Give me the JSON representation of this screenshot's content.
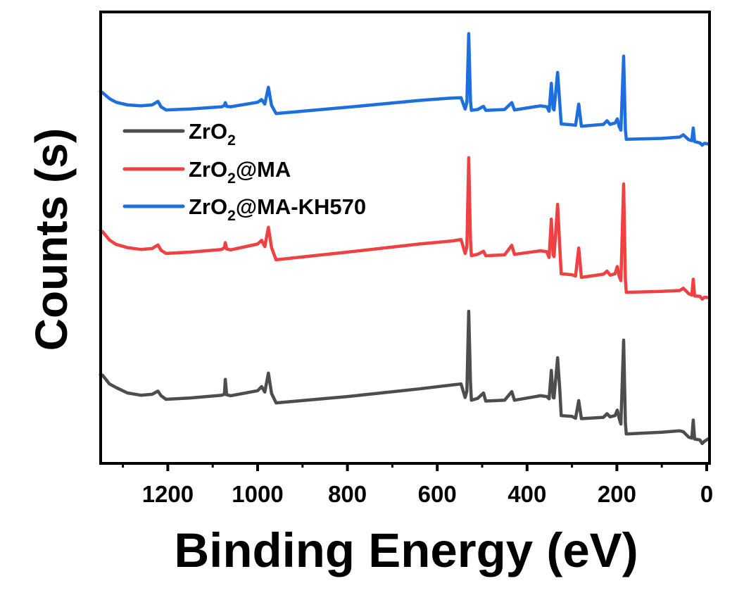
{
  "chart_data": {
    "type": "line",
    "title": "",
    "xlabel": "Binding Energy (eV)",
    "ylabel": "Counts (s)",
    "xlim": [
      1350,
      -8
    ],
    "ylim": [
      0,
      100
    ],
    "x_reversed": true,
    "grid": false,
    "y_ticks_shown": false,
    "x_ticks": [
      {
        "value": 1200,
        "label": "1200"
      },
      {
        "value": 1000,
        "label": "1000"
      },
      {
        "value": 800,
        "label": "800"
      },
      {
        "value": 600,
        "label": "600"
      },
      {
        "value": 400,
        "label": "400"
      },
      {
        "value": 200,
        "label": "200"
      },
      {
        "value": 0,
        "label": "0"
      }
    ],
    "x_minor_ticks": [
      1300,
      1100,
      900,
      700,
      500,
      300,
      100
    ],
    "legend": {
      "placement": "upper-left",
      "entries": [
        {
          "label_main": "ZrO",
          "label_sub": "2",
          "label_rest": "",
          "series": 0
        },
        {
          "label_main": "ZrO",
          "label_sub": "2",
          "label_rest": "@MA",
          "series": 1
        },
        {
          "label_main": "ZrO",
          "label_sub": "2",
          "label_rest": "@MA-KH570",
          "series": 2
        }
      ]
    },
    "series": [
      {
        "name": "ZrO2",
        "color": "#4d4d4d",
        "points": [
          [
            1350,
            19.7
          ],
          [
            1345,
            19.5
          ],
          [
            1330,
            17.6
          ],
          [
            1315,
            16.8
          ],
          [
            1290,
            15.6
          ],
          [
            1260,
            15.1
          ],
          [
            1235,
            15.3
          ],
          [
            1222,
            16.0
          ],
          [
            1215,
            15.0
          ],
          [
            1204,
            14.2
          ],
          [
            1150,
            14.5
          ],
          [
            1080,
            15.1
          ],
          [
            1074,
            15.3
          ],
          [
            1072,
            18.6
          ],
          [
            1069,
            15.2
          ],
          [
            1060,
            15.0
          ],
          [
            1000,
            16.1
          ],
          [
            991,
            17.0
          ],
          [
            984,
            15.8
          ],
          [
            976,
            20.0
          ],
          [
            969,
            15.5
          ],
          [
            959,
            13.4
          ],
          [
            800,
            14.8
          ],
          [
            640,
            16.5
          ],
          [
            565,
            17.4
          ],
          [
            547,
            17.6
          ],
          [
            538,
            14.6
          ],
          [
            534,
            16.0
          ],
          [
            530,
            33.7
          ],
          [
            526,
            18.0
          ],
          [
            524,
            14.0
          ],
          [
            510,
            14.4
          ],
          [
            497,
            15.6
          ],
          [
            492,
            13.8
          ],
          [
            450,
            14.0
          ],
          [
            434,
            15.9
          ],
          [
            428,
            14.0
          ],
          [
            370,
            15.0
          ],
          [
            356,
            14.8
          ],
          [
            351,
            14.3
          ],
          [
            346,
            20.6
          ],
          [
            342,
            14.6
          ],
          [
            340,
            14.5
          ],
          [
            332,
            23.4
          ],
          [
            327,
            16.0
          ],
          [
            324,
            10.6
          ],
          [
            300,
            10.4
          ],
          [
            292,
            10.0
          ],
          [
            285,
            13.9
          ],
          [
            279,
            9.9
          ],
          [
            230,
            10.2
          ],
          [
            222,
            11.0
          ],
          [
            215,
            10.3
          ],
          [
            204,
            10.6
          ],
          [
            199,
            11.8
          ],
          [
            195,
            10.0
          ],
          [
            191,
            8.7
          ],
          [
            185,
            27.3
          ],
          [
            181,
            8.9
          ],
          [
            179,
            6.5
          ],
          [
            100,
            6.9
          ],
          [
            60,
            7.2
          ],
          [
            52,
            7.0
          ],
          [
            40,
            5.8
          ],
          [
            33,
            5.6
          ],
          [
            30,
            9.6
          ],
          [
            27,
            5.4
          ],
          [
            15,
            5.2
          ],
          [
            10,
            4.4
          ],
          [
            5,
            4.9
          ],
          [
            -6,
            5.6
          ]
        ]
      },
      {
        "name": "ZrO2@MA",
        "color": "#ef4142",
        "points": [
          [
            1350,
            51.6
          ],
          [
            1345,
            51.3
          ],
          [
            1330,
            49.5
          ],
          [
            1315,
            48.5
          ],
          [
            1290,
            47.8
          ],
          [
            1260,
            47.4
          ],
          [
            1235,
            47.6
          ],
          [
            1222,
            48.4
          ],
          [
            1215,
            47.2
          ],
          [
            1204,
            46.5
          ],
          [
            1150,
            46.8
          ],
          [
            1080,
            47.4
          ],
          [
            1074,
            47.8
          ],
          [
            1072,
            48.9
          ],
          [
            1069,
            47.5
          ],
          [
            1060,
            47.3
          ],
          [
            1000,
            48.6
          ],
          [
            991,
            49.4
          ],
          [
            984,
            48.0
          ],
          [
            976,
            52.3
          ],
          [
            969,
            47.8
          ],
          [
            959,
            45.1
          ],
          [
            800,
            46.8
          ],
          [
            640,
            48.6
          ],
          [
            565,
            49.3
          ],
          [
            547,
            49.6
          ],
          [
            538,
            46.5
          ],
          [
            534,
            48.0
          ],
          [
            530,
            67.7
          ],
          [
            526,
            49.5
          ],
          [
            524,
            46.0
          ],
          [
            510,
            46.3
          ],
          [
            497,
            47.0
          ],
          [
            492,
            46.0
          ],
          [
            450,
            46.2
          ],
          [
            434,
            48.3
          ],
          [
            428,
            46.3
          ],
          [
            370,
            47.1
          ],
          [
            356,
            46.9
          ],
          [
            351,
            45.6
          ],
          [
            346,
            54.1
          ],
          [
            342,
            46.2
          ],
          [
            340,
            45.8
          ],
          [
            332,
            57.4
          ],
          [
            327,
            47.5
          ],
          [
            324,
            42.0
          ],
          [
            300,
            41.8
          ],
          [
            292,
            41.5
          ],
          [
            285,
            47.7
          ],
          [
            279,
            41.2
          ],
          [
            230,
            41.9
          ],
          [
            222,
            42.6
          ],
          [
            215,
            41.7
          ],
          [
            204,
            42.0
          ],
          [
            199,
            43.6
          ],
          [
            195,
            41.5
          ],
          [
            191,
            40.5
          ],
          [
            185,
            61.9
          ],
          [
            181,
            40.7
          ],
          [
            179,
            37.9
          ],
          [
            100,
            38.1
          ],
          [
            60,
            38.3
          ],
          [
            52,
            38.8
          ],
          [
            40,
            37.6
          ],
          [
            33,
            37.3
          ],
          [
            30,
            40.8
          ],
          [
            27,
            37.1
          ],
          [
            15,
            37.0
          ],
          [
            10,
            36.4
          ],
          [
            5,
            36.8
          ],
          [
            -6,
            36.7
          ]
        ]
      },
      {
        "name": "ZrO2@MA-KH570",
        "color": "#1d6fde",
        "points": [
          [
            1350,
            82.4
          ],
          [
            1345,
            82.1
          ],
          [
            1330,
            80.8
          ],
          [
            1315,
            80.0
          ],
          [
            1290,
            79.4
          ],
          [
            1260,
            79.2
          ],
          [
            1235,
            79.4
          ],
          [
            1222,
            80.2
          ],
          [
            1215,
            79.0
          ],
          [
            1204,
            78.3
          ],
          [
            1150,
            78.5
          ],
          [
            1080,
            79.0
          ],
          [
            1074,
            79.3
          ],
          [
            1072,
            79.9
          ],
          [
            1069,
            79.1
          ],
          [
            1060,
            79.0
          ],
          [
            1000,
            80.0
          ],
          [
            991,
            80.6
          ],
          [
            984,
            79.6
          ],
          [
            976,
            83.3
          ],
          [
            969,
            79.3
          ],
          [
            959,
            77.5
          ],
          [
            800,
            78.9
          ],
          [
            640,
            80.4
          ],
          [
            571,
            80.9
          ],
          [
            547,
            81.0
          ],
          [
            538,
            78.5
          ],
          [
            534,
            80.0
          ],
          [
            530,
            95.2
          ],
          [
            526,
            80.3
          ],
          [
            524,
            78.2
          ],
          [
            510,
            78.4
          ],
          [
            497,
            79.1
          ],
          [
            492,
            78.2
          ],
          [
            450,
            78.4
          ],
          [
            434,
            79.9
          ],
          [
            428,
            78.3
          ],
          [
            370,
            79.2
          ],
          [
            356,
            79.0
          ],
          [
            351,
            78.0
          ],
          [
            346,
            84.2
          ],
          [
            342,
            78.6
          ],
          [
            340,
            78.3
          ],
          [
            332,
            86.6
          ],
          [
            327,
            79.5
          ],
          [
            324,
            75.2
          ],
          [
            300,
            75.0
          ],
          [
            292,
            74.9
          ],
          [
            285,
            79.6
          ],
          [
            279,
            74.7
          ],
          [
            230,
            75.1
          ],
          [
            222,
            75.9
          ],
          [
            215,
            75.1
          ],
          [
            204,
            75.4
          ],
          [
            199,
            76.3
          ],
          [
            195,
            74.6
          ],
          [
            191,
            73.8
          ],
          [
            185,
            90.2
          ],
          [
            181,
            73.9
          ],
          [
            179,
            71.8
          ],
          [
            100,
            72.0
          ],
          [
            60,
            72.3
          ],
          [
            52,
            72.8
          ],
          [
            40,
            71.7
          ],
          [
            33,
            71.5
          ],
          [
            30,
            74.3
          ],
          [
            27,
            71.3
          ],
          [
            15,
            71.0
          ],
          [
            10,
            70.5
          ],
          [
            5,
            70.9
          ],
          [
            -6,
            70.7
          ]
        ]
      }
    ]
  }
}
